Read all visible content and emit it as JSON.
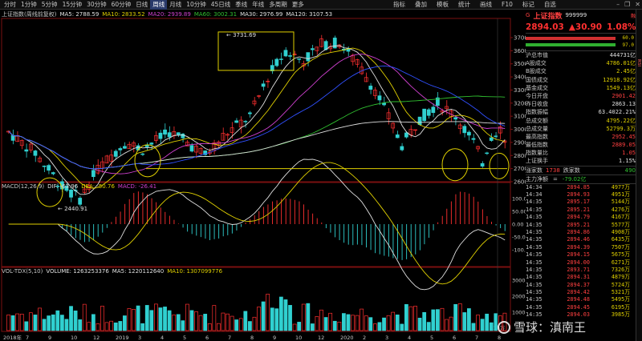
{
  "toolbar": {
    "periods": [
      "分时",
      "1分钟",
      "5分钟",
      "15分钟",
      "30分钟",
      "60分钟",
      "日线",
      "周线",
      "月线",
      "10分钟",
      "45日线",
      "季线",
      "年线",
      "多周期",
      "更多"
    ],
    "active_period": "周线",
    "menu": [
      "指标",
      "叠加",
      "模板",
      "统计",
      "画线",
      "F10",
      "标记",
      "自选"
    ]
  },
  "ma_line": [
    {
      "text": "上证指数(周线前复权)",
      "color": "#c8c8c8"
    },
    {
      "text": "MA5: 2788.59",
      "color": "#e0e0e0"
    },
    {
      "text": "MA10: 2833.52",
      "color": "#e0d000"
    },
    {
      "text": "MA20: 2939.89",
      "color": "#d040d0"
    },
    {
      "text": "MA60: 3002.31",
      "color": "#30c030"
    },
    {
      "text": "MA30: 2976.99",
      "color": "#e0e0e0"
    },
    {
      "text": "MA120: 3107.53",
      "color": "#e0e0e0"
    }
  ],
  "macd_header": [
    {
      "text": "MACD(12,26,9)",
      "color": "#c8c8c8"
    },
    {
      "text": "DIF: -63.96",
      "color": "#e0e0e0"
    },
    {
      "text": "DEA: -50.76",
      "color": "#e0d000"
    },
    {
      "text": "MACD: -26.41",
      "color": "#d040d0"
    }
  ],
  "vol_header": [
    {
      "text": "VOL-TDX(5,10)",
      "color": "#c8c8c8"
    },
    {
      "text": "VOLUME: 1263253376",
      "color": "#e0e0e0"
    },
    {
      "text": "MA5: 1220112640",
      "color": "#e0e0e0"
    },
    {
      "text": "MA10: 1307099776",
      "color": "#e0d000"
    }
  ],
  "price_axis": [
    "3700",
    "3600",
    "3500",
    "3400",
    "3300",
    "3200",
    "3100",
    "3000",
    "2900",
    "2800",
    "2700",
    "2600"
  ],
  "macd_axis": [
    "100.00",
    "50.00",
    "0.00",
    "-50.00",
    "-100.00"
  ],
  "vol_axis": [
    "30000",
    "20000",
    "10000"
  ],
  "vol_unit": "X10万",
  "x_axis": [
    "2018年",
    "7",
    "9",
    "10",
    "12",
    "2019",
    "3",
    "4",
    "5",
    "6",
    "7",
    "8",
    "9",
    "10",
    "12",
    "2020",
    "2",
    "3",
    "4",
    "5",
    "6",
    "7",
    "8"
  ],
  "annotations": {
    "high": "3731.69",
    "low": "2440.91"
  },
  "panel": {
    "icon": "G",
    "title": "上证指数",
    "code": "999999",
    "flag": "融",
    "price": "2894.03",
    "change": "▲30.90",
    "pct": "1.08%",
    "bar1": "60.0",
    "bar2": "97.0",
    "stats": [
      {
        "l": "沪总市值",
        "v": "444731亿",
        "c": "#e0e0e0"
      },
      {
        "l": "A股成交",
        "v": "4786.01亿",
        "c": "#e0d000"
      },
      {
        "l": "B股成交",
        "v": "2.45亿",
        "c": "#e0d000"
      },
      {
        "l": "国债成交",
        "v": "12918.92亿",
        "c": "#e0d000"
      },
      {
        "l": "基金成交",
        "v": "1549.13亿",
        "c": "#e0d000"
      },
      {
        "l": "今日开盘",
        "v": "2901.42",
        "c": "#ff4040"
      },
      {
        "l": "昨日收盘",
        "v": "2863.13",
        "c": "#e0e0e0"
      },
      {
        "l": "指数振幅",
        "v": "63.4022.21%",
        "c": "#e0e0e0"
      },
      {
        "l": "总成交额",
        "v": "4795.22亿",
        "c": "#e0d000"
      },
      {
        "l": "总成交量",
        "v": "52799.3万",
        "c": "#e0d000"
      },
      {
        "l": "最高指数",
        "v": "2952.45",
        "c": "#ff4040"
      },
      {
        "l": "最低指数",
        "v": "2889.05",
        "c": "#ff4040"
      },
      {
        "l": "指数量比",
        "v": "1.05",
        "c": "#ff4040"
      },
      {
        "l": "上证换手",
        "v": "1.15%",
        "c": "#e0e0e0"
      }
    ],
    "rise_label": "涨家数",
    "rise": "1738",
    "fall_label": "跌家数",
    "fall": "490",
    "net_label": "主力净额",
    "net_flag": "=",
    "net": "-79.02亿",
    "ticks": [
      {
        "t": "14:34",
        "p": "2894.85",
        "v": "4977万"
      },
      {
        "t": "14:34",
        "p": "2894.93",
        "v": "4951万"
      },
      {
        "t": "14:35",
        "p": "2895.17",
        "v": "5144万"
      },
      {
        "t": "14:35",
        "p": "2895.21",
        "v": "4276万"
      },
      {
        "t": "14:35",
        "p": "2894.79",
        "v": "4167万"
      },
      {
        "t": "14:35",
        "p": "2895.21",
        "v": "5577万"
      },
      {
        "t": "14:35",
        "p": "2894.86",
        "v": "4908万"
      },
      {
        "t": "14:35",
        "p": "2894.46",
        "v": "6435万"
      },
      {
        "t": "14:35",
        "p": "2894.39",
        "v": "7507万"
      },
      {
        "t": "14:35",
        "p": "2894.15",
        "v": "5675万"
      },
      {
        "t": "14:35",
        "p": "2894.00",
        "v": "6271万"
      },
      {
        "t": "14:35",
        "p": "2893.71",
        "v": "7326万"
      },
      {
        "t": "14:35",
        "p": "2894.31",
        "v": "4879万"
      },
      {
        "t": "14:35",
        "p": "2894.37",
        "v": "5724万"
      },
      {
        "t": "14:35",
        "p": "2894.42",
        "v": "5321万"
      },
      {
        "t": "14:35",
        "p": "2894.48",
        "v": "5495万"
      },
      {
        "t": "14:35",
        "p": "2894.45",
        "v": "6195万"
      },
      {
        "t": "14:35",
        "p": "2894.03",
        "v": "3985万"
      }
    ]
  },
  "sidebar_text": "RSI",
  "watermark": "雪球：滇南王"
}
